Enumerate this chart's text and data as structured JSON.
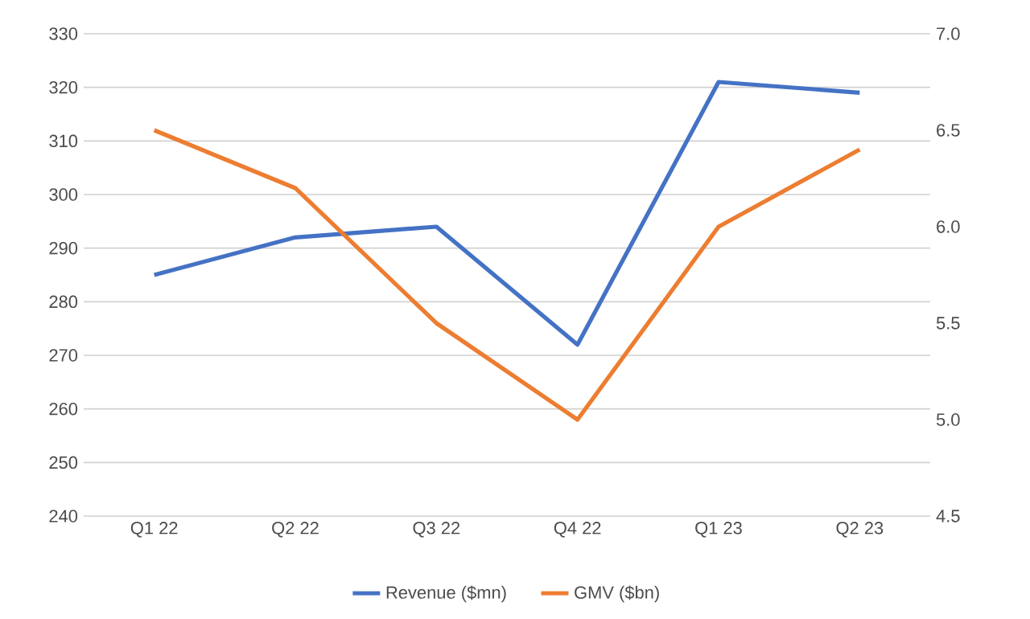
{
  "chart_data": {
    "type": "line",
    "categories": [
      "Q1 22",
      "Q2 22",
      "Q3 22",
      "Q4 22",
      "Q1 23",
      "Q2 23"
    ],
    "series": [
      {
        "name": "Revenue ($mn)",
        "color": "#4472c4",
        "values": [
          285,
          292,
          294,
          272,
          321,
          319
        ]
      },
      {
        "name": "GMV ($bn)",
        "color": "#ed7d31",
        "values": [
          6.5,
          6.2,
          5.5,
          5.0,
          6.0,
          6.4
        ],
        "axis": "y2"
      }
    ],
    "ylim": [
      240,
      330
    ],
    "yticks": [
      240,
      250,
      260,
      270,
      280,
      290,
      300,
      310,
      320,
      330
    ],
    "y2lim": [
      4.5,
      7.0
    ],
    "y2ticks": [
      {
        "value": 4.5,
        "label": "4.5"
      },
      {
        "value": 5.0,
        "label": "5.0"
      },
      {
        "value": 5.5,
        "label": "5.5"
      },
      {
        "value": 6.0,
        "label": "6.0"
      },
      {
        "value": 6.5,
        "label": "6.5"
      },
      {
        "value": 7.0,
        "label": "7.0"
      }
    ],
    "grid": "y",
    "legend": "bottom",
    "marker": "none",
    "line_style": "solid"
  }
}
